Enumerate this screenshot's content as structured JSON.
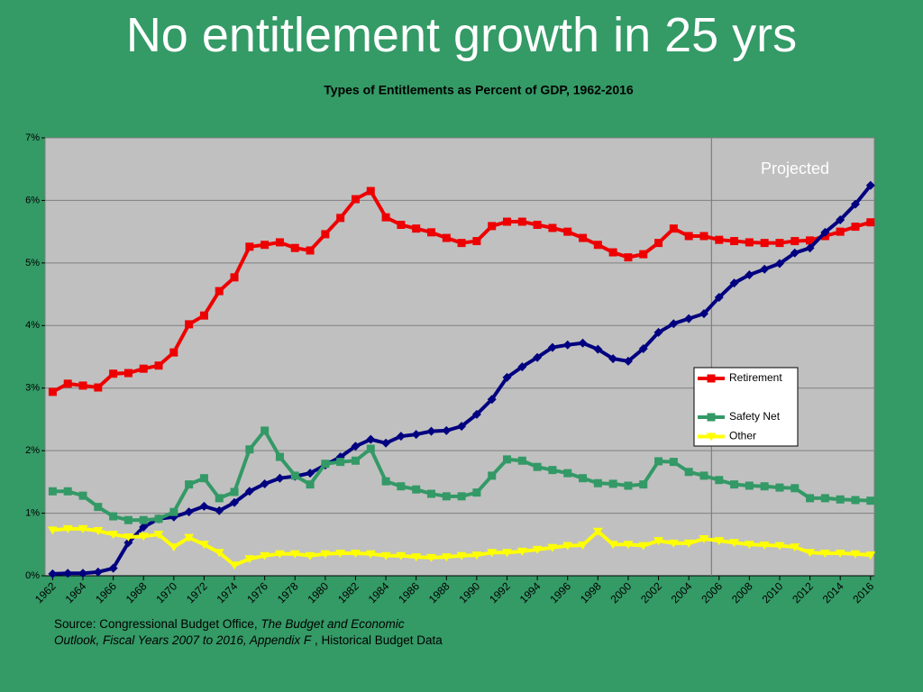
{
  "title": "No entitlement growth in 25 yrs",
  "source": [
    "Source: Congressional Budget Office, ",
    "The Budget and Economic Outlook, Fiscal Years 2007 to 2016, Appendix F",
    " , Historical Budget Data"
  ],
  "chart_data": {
    "type": "line",
    "title": "Types of Entitlements as Percent of GDP, 1962-2016",
    "annotation": "Projected",
    "projection_start": 2005.5,
    "x": [
      1962,
      1963,
      1964,
      1965,
      1966,
      1967,
      1968,
      1969,
      1970,
      1971,
      1972,
      1973,
      1974,
      1975,
      1976,
      1977,
      1978,
      1979,
      1980,
      1981,
      1982,
      1983,
      1984,
      1985,
      1986,
      1987,
      1988,
      1989,
      1990,
      1991,
      1992,
      1993,
      1994,
      1995,
      1996,
      1997,
      1998,
      1999,
      2000,
      2001,
      2002,
      2003,
      2004,
      2005,
      2006,
      2007,
      2008,
      2009,
      2010,
      2011,
      2012,
      2013,
      2014,
      2015,
      2016
    ],
    "xlim": [
      1961.5,
      2016.25
    ],
    "xticks": [
      1962,
      1964,
      1966,
      1968,
      1970,
      1972,
      1974,
      1976,
      1978,
      1980,
      1982,
      1984,
      1986,
      1988,
      1990,
      1992,
      1994,
      1996,
      1998,
      2000,
      2002,
      2004,
      2006,
      2008,
      2010,
      2012,
      2014,
      2016
    ],
    "ylim": [
      0,
      7
    ],
    "yticks": [
      {
        "value": 0,
        "label": "0%"
      },
      {
        "value": 1,
        "label": "1%"
      },
      {
        "value": 2,
        "label": "2%"
      },
      {
        "value": 3,
        "label": "3%"
      },
      {
        "value": 4,
        "label": "4%"
      },
      {
        "value": 5,
        "label": "5%"
      },
      {
        "value": 6,
        "label": "6%"
      },
      {
        "value": 7,
        "label": "7%"
      }
    ],
    "grid": true,
    "legend": "right",
    "series": [
      {
        "name": "Retirement",
        "color": "#ee0000",
        "marker": "square",
        "values": [
          2.94,
          3.07,
          3.04,
          3.01,
          3.23,
          3.24,
          3.31,
          3.36,
          3.57,
          4.02,
          4.16,
          4.55,
          4.77,
          5.26,
          5.29,
          5.33,
          5.24,
          5.2,
          5.46,
          5.72,
          6.02,
          6.15,
          5.73,
          5.61,
          5.55,
          5.49,
          5.4,
          5.32,
          5.35,
          5.59,
          5.66,
          5.66,
          5.61,
          5.56,
          5.5,
          5.4,
          5.29,
          5.17,
          5.09,
          5.14,
          5.32,
          5.55,
          5.43,
          5.43,
          5.37,
          5.35,
          5.33,
          5.32,
          5.32,
          5.35,
          5.36,
          5.43,
          5.5,
          5.58,
          5.65
        ]
      },
      {
        "color": "#000080",
        "marker": "diamond",
        "values": [
          0.03,
          0.04,
          0.04,
          0.06,
          0.12,
          0.53,
          0.78,
          0.91,
          0.94,
          1.02,
          1.11,
          1.04,
          1.17,
          1.35,
          1.47,
          1.56,
          1.59,
          1.64,
          1.77,
          1.9,
          2.07,
          2.18,
          2.12,
          2.23,
          2.26,
          2.31,
          2.32,
          2.39,
          2.58,
          2.82,
          3.17,
          3.34,
          3.49,
          3.65,
          3.69,
          3.72,
          3.62,
          3.47,
          3.43,
          3.63,
          3.89,
          4.03,
          4.11,
          4.19,
          4.45,
          4.68,
          4.81,
          4.9,
          4.99,
          5.16,
          5.24,
          5.49,
          5.69,
          5.94,
          6.24
        ]
      },
      {
        "name": "Safety Net",
        "color": "#339966",
        "marker": "square",
        "values": [
          1.35,
          1.35,
          1.28,
          1.1,
          0.95,
          0.89,
          0.89,
          0.91,
          1.02,
          1.46,
          1.56,
          1.24,
          1.34,
          2.02,
          2.32,
          1.9,
          1.6,
          1.46,
          1.79,
          1.82,
          1.84,
          2.03,
          1.51,
          1.43,
          1.38,
          1.31,
          1.27,
          1.27,
          1.33,
          1.6,
          1.86,
          1.84,
          1.74,
          1.69,
          1.64,
          1.56,
          1.48,
          1.47,
          1.44,
          1.46,
          1.83,
          1.82,
          1.66,
          1.6,
          1.53,
          1.46,
          1.44,
          1.43,
          1.41,
          1.4,
          1.24,
          1.24,
          1.22,
          1.21,
          1.2
        ]
      },
      {
        "name": "Other",
        "color": "#ffff00",
        "marker": "triangle",
        "values": [
          0.73,
          0.75,
          0.75,
          0.72,
          0.66,
          0.62,
          0.63,
          0.66,
          0.46,
          0.61,
          0.5,
          0.37,
          0.17,
          0.27,
          0.32,
          0.35,
          0.35,
          0.32,
          0.35,
          0.36,
          0.36,
          0.35,
          0.32,
          0.32,
          0.3,
          0.29,
          0.3,
          0.32,
          0.33,
          0.37,
          0.37,
          0.39,
          0.42,
          0.45,
          0.48,
          0.49,
          0.71,
          0.5,
          0.5,
          0.48,
          0.56,
          0.52,
          0.52,
          0.59,
          0.56,
          0.53,
          0.5,
          0.49,
          0.48,
          0.46,
          0.37,
          0.36,
          0.36,
          0.35,
          0.33
        ]
      }
    ]
  }
}
